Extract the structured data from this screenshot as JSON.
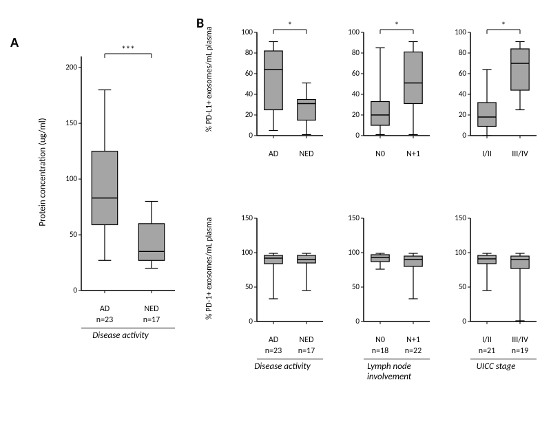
{
  "panelA": {
    "label": "A",
    "chart": {
      "type": "boxplot",
      "ylabel": "Protein concentration (ug/ml)",
      "section": "Disease activity",
      "signif": "***",
      "ylim": [
        0,
        210
      ],
      "ytick_step": 50,
      "categories": [
        "AD",
        "NED"
      ],
      "n_labels": [
        "n=23",
        "n=17"
      ],
      "boxes": [
        {
          "min": 27,
          "q1": 59,
          "median": 83,
          "q3": 125,
          "max": 180
        },
        {
          "min": 20,
          "q1": 27,
          "median": 35,
          "q3": 60,
          "max": 80
        }
      ],
      "box_fill": "#a5a5a5",
      "box_stroke": "#000000",
      "bg": "#ffffff"
    }
  },
  "panelB": {
    "label": "B",
    "top": {
      "ylabel": "% PD-L1+ exosomes/mL plasma",
      "ylim": [
        0,
        100
      ],
      "ytick_step": 20,
      "charts": [
        {
          "section": "",
          "signif": "*",
          "categories": [
            "AD",
            "NED"
          ],
          "boxes": [
            {
              "min": 5,
              "q1": 25,
              "median": 64,
              "q3": 82,
              "max": 91
            },
            {
              "min": 1,
              "q1": 15,
              "median": 31,
              "q3": 35,
              "max": 51
            }
          ]
        },
        {
          "section": "",
          "signif": "*",
          "categories": [
            "N0",
            "N+1"
          ],
          "boxes": [
            {
              "min": 1,
              "q1": 10,
              "median": 20,
              "q3": 33,
              "max": 85
            },
            {
              "min": 1,
              "q1": 31,
              "median": 51,
              "q3": 81,
              "max": 91
            }
          ]
        },
        {
          "section": "",
          "signif": "*",
          "categories": [
            "I/II",
            "III/IV"
          ],
          "boxes": [
            {
              "min": 0,
              "q1": 9,
              "median": 18,
              "q3": 32,
              "max": 64
            },
            {
              "min": 25,
              "q1": 44,
              "median": 70,
              "q3": 84,
              "max": 91
            }
          ]
        }
      ]
    },
    "bottom": {
      "ylabel": "% PD-1+ exosomes/mL plasma",
      "ylim": [
        0,
        150
      ],
      "ytick_step": 50,
      "charts": [
        {
          "section": "Disease activity",
          "categories": [
            "AD",
            "NED"
          ],
          "n_labels": [
            "n=23",
            "n=17"
          ],
          "boxes": [
            {
              "min": 33,
              "q1": 84,
              "median": 92,
              "q3": 96,
              "max": 99
            },
            {
              "min": 45,
              "q1": 85,
              "median": 90,
              "q3": 96,
              "max": 99
            }
          ]
        },
        {
          "section": "Lymph node involvement",
          "categories": [
            "N0",
            "N+1"
          ],
          "n_labels": [
            "n=18",
            "n=22"
          ],
          "boxes": [
            {
              "min": 76,
              "q1": 87,
              "median": 93,
              "q3": 97,
              "max": 99
            },
            {
              "min": 33,
              "q1": 80,
              "median": 90,
              "q3": 95,
              "max": 99
            }
          ]
        },
        {
          "section": "UICC stage",
          "categories": [
            "I/II",
            "III/IV"
          ],
          "n_labels": [
            "n=21",
            "n=19"
          ],
          "boxes": [
            {
              "min": 45,
              "q1": 84,
              "median": 91,
              "q3": 96,
              "max": 99
            },
            {
              "min": 1,
              "q1": 77,
              "median": 90,
              "q3": 95,
              "max": 99
            }
          ]
        }
      ]
    },
    "box_fill": "#a5a5a5",
    "box_stroke": "#000000"
  }
}
